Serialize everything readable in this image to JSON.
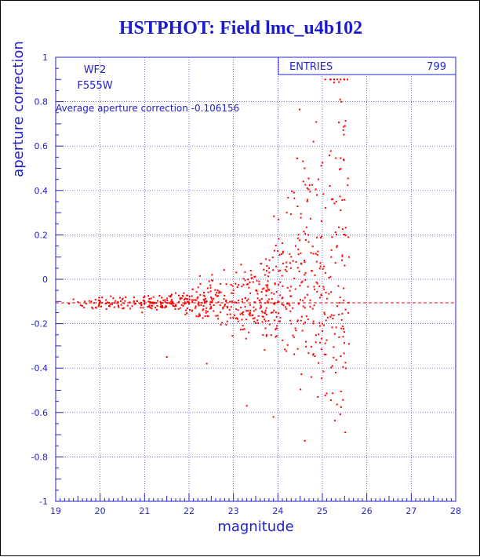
{
  "chart_data": {
    "type": "scatter",
    "title": "HSTPHOT: Field lmc_u4b102",
    "xlabel": "magnitude",
    "ylabel": "aperture correction",
    "xlim": [
      19,
      28
    ],
    "ylim": [
      -1,
      1
    ],
    "x_ticks": [
      "19",
      "20",
      "21",
      "22",
      "23",
      "24",
      "25",
      "26",
      "27",
      "28"
    ],
    "y_ticks": [
      "-1",
      "-0.8",
      "-0.6",
      "-0.4",
      "-0.2",
      "0",
      "0.2",
      "0.4",
      "0.6",
      "0.8",
      "1"
    ],
    "grid": true,
    "annotations": {
      "camera": "WF2",
      "filter": "F555W",
      "average_text": "Average aperture correction -0.106156"
    },
    "stats_box": {
      "label": "ENTRIES",
      "value": "799"
    },
    "reference_line": {
      "y": -0.106156,
      "style": "dashed"
    },
    "series": [
      {
        "marker_color": "#ff0000",
        "points_sample": [
          [
            19.3,
            -0.11
          ],
          [
            19.4,
            -0.09
          ],
          [
            19.6,
            -0.12
          ],
          [
            19.8,
            -0.1
          ],
          [
            20.0,
            -0.1
          ],
          [
            20.2,
            -0.12
          ],
          [
            20.5,
            -0.09
          ],
          [
            20.8,
            -0.11
          ],
          [
            21.0,
            -0.1
          ],
          [
            21.2,
            -0.08
          ],
          [
            21.4,
            -0.12
          ],
          [
            21.6,
            -0.1
          ],
          [
            21.8,
            -0.09
          ],
          [
            22.0,
            -0.11
          ],
          [
            22.2,
            -0.08
          ],
          [
            22.4,
            -0.1
          ],
          [
            22.6,
            -0.07
          ],
          [
            22.8,
            -0.12
          ],
          [
            23.0,
            -0.05
          ],
          [
            23.2,
            -0.09
          ],
          [
            23.4,
            0.02
          ],
          [
            23.6,
            -0.13
          ],
          [
            23.8,
            0.05
          ],
          [
            24.0,
            -0.1
          ],
          [
            24.2,
            0.3
          ],
          [
            24.4,
            0.15
          ],
          [
            24.6,
            0.5
          ],
          [
            24.8,
            0.62
          ],
          [
            25.0,
            -0.2
          ],
          [
            25.2,
            0.1
          ],
          [
            25.4,
            0.81
          ],
          [
            22.4,
            -0.38
          ],
          [
            23.3,
            -0.57
          ],
          [
            24.9,
            -0.53
          ],
          [
            25.3,
            -0.42
          ],
          [
            21.5,
            -0.35
          ],
          [
            24.6,
            0.02
          ],
          [
            24.3,
            -0.2
          ],
          [
            25.6,
            0.1
          ],
          [
            23.9,
            -0.62
          ]
        ]
      }
    ],
    "colors": {
      "title": "#1a1ad0",
      "axis": "#2222cc",
      "grid": "#3333cc",
      "points": "#ff0000",
      "border": "#000000"
    }
  }
}
